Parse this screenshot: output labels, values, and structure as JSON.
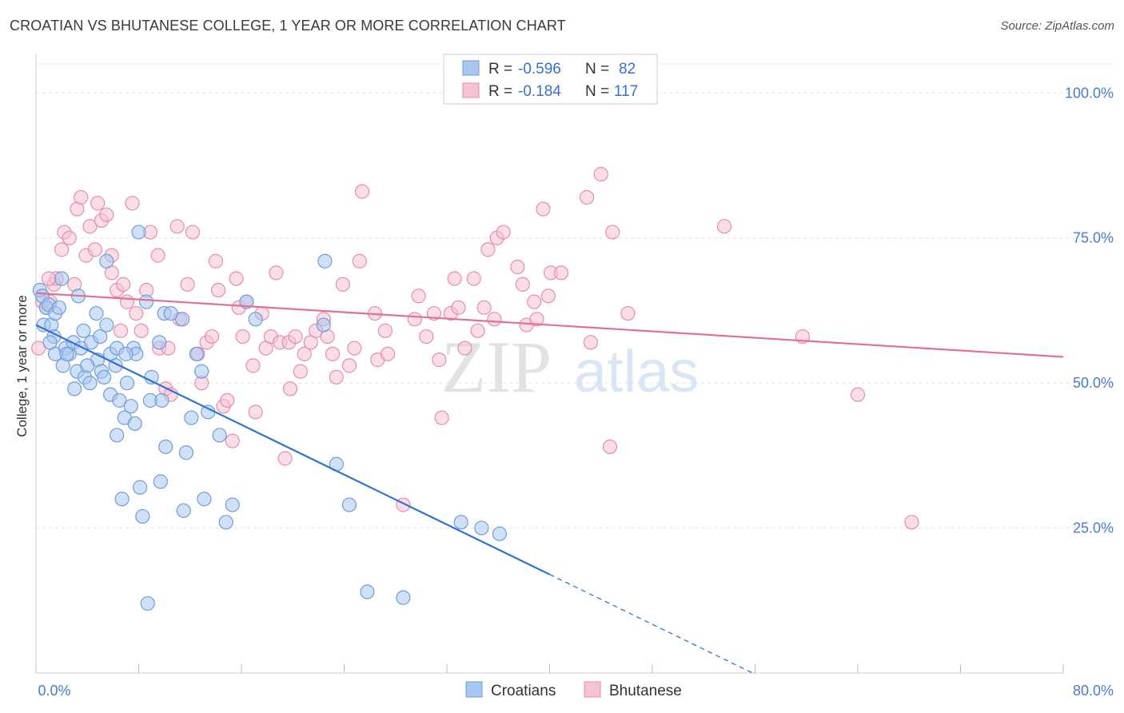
{
  "header": {
    "title": "CROATIAN VS BHUTANESE COLLEGE, 1 YEAR OR MORE CORRELATION CHART",
    "source": "Source: ZipAtlas.com"
  },
  "watermark": {
    "zip": "ZIP",
    "atlas": "atlas"
  },
  "colors": {
    "blue_fill": "#a9c6ee",
    "blue_stroke": "#6f9ddc",
    "blue_line": "#2f73d4",
    "pink_fill": "#f5c3d3",
    "pink_stroke": "#e98cab",
    "pink_line": "#e0709a",
    "axis_label": "#4a7bd0",
    "grid": "#e3e3e3"
  },
  "legend": {
    "rows": [
      {
        "series": "Croatians",
        "r_label": "R =",
        "r_value": "-0.596",
        "n_label": "N =",
        "n_value": "82"
      },
      {
        "series": "Bhutanese",
        "r_label": "R =",
        "r_value": "-0.184",
        "n_label": "N =",
        "n_value": "117"
      }
    ]
  },
  "bottom_legend": [
    "Croatians",
    "Bhutanese"
  ],
  "chart_data": {
    "type": "scatter",
    "title": "CROATIAN VS BHUTANESE COLLEGE, 1 YEAR OR MORE CORRELATION CHART",
    "xlabel": "",
    "ylabel": "College, 1 year or more",
    "xlim": [
      0,
      80
    ],
    "ylim": [
      0,
      105
    ],
    "x_tick_labels": [
      "0.0%",
      "80.0%"
    ],
    "y_ticks": [
      25,
      50,
      75,
      100
    ],
    "y_tick_labels": [
      "25.0%",
      "50.0%",
      "75.0%",
      "100.0%"
    ],
    "grid": true,
    "legend_position": "top-center",
    "series": [
      {
        "name": "Croatians",
        "R": -0.596,
        "N": 82,
        "trend": {
          "x0": 0,
          "y0": 60,
          "x1": 40,
          "y1": 17,
          "dash_to_x": 56
        },
        "points": [
          [
            0.3,
            66
          ],
          [
            0.5,
            65
          ],
          [
            0.8,
            63
          ],
          [
            1,
            63.5
          ],
          [
            0.6,
            60
          ],
          [
            1.2,
            60
          ],
          [
            1.4,
            58
          ],
          [
            1.5,
            62
          ],
          [
            1.8,
            63
          ],
          [
            1.5,
            55
          ],
          [
            2,
            68
          ],
          [
            2.3,
            56
          ],
          [
            2.6,
            55
          ],
          [
            2.1,
            53
          ],
          [
            2.9,
            57
          ],
          [
            3.3,
            65
          ],
          [
            3.5,
            56
          ],
          [
            3.2,
            52
          ],
          [
            3.7,
            59
          ],
          [
            3.8,
            51
          ],
          [
            4.3,
            57
          ],
          [
            4.2,
            50
          ],
          [
            4.7,
            62
          ],
          [
            4.8,
            54
          ],
          [
            5.1,
            52
          ],
          [
            5.3,
            51
          ],
          [
            5.5,
            60
          ],
          [
            5.5,
            71
          ],
          [
            5.8,
            55
          ],
          [
            5.8,
            48
          ],
          [
            6.2,
            53
          ],
          [
            6.3,
            56
          ],
          [
            6.5,
            47
          ],
          [
            6.3,
            41
          ],
          [
            7.1,
            50
          ],
          [
            6.9,
            44
          ],
          [
            7.4,
            46
          ],
          [
            7.6,
            56
          ],
          [
            7.7,
            43
          ],
          [
            7.8,
            55
          ],
          [
            8.1,
            32
          ],
          [
            8.0,
            76
          ],
          [
            8.3,
            27
          ],
          [
            8.6,
            64
          ],
          [
            8.9,
            47
          ],
          [
            9.0,
            51
          ],
          [
            9.6,
            57
          ],
          [
            9.7,
            33
          ],
          [
            9.8,
            47
          ],
          [
            10.0,
            62
          ],
          [
            10.1,
            39
          ],
          [
            10.5,
            62
          ],
          [
            11.4,
            61
          ],
          [
            11.5,
            28
          ],
          [
            11.7,
            38
          ],
          [
            12.1,
            44
          ],
          [
            12.5,
            55
          ],
          [
            12.9,
            52
          ],
          [
            13.1,
            30
          ],
          [
            13.4,
            45
          ],
          [
            14.3,
            41
          ],
          [
            14.8,
            26
          ],
          [
            15.3,
            29
          ],
          [
            16.4,
            64
          ],
          [
            17.1,
            61
          ],
          [
            22.4,
            60
          ],
          [
            22.5,
            71
          ],
          [
            23.4,
            36
          ],
          [
            24.4,
            29
          ],
          [
            25.8,
            14
          ],
          [
            28.6,
            13
          ],
          [
            33.1,
            26
          ],
          [
            34.7,
            25
          ],
          [
            36.1,
            24
          ],
          [
            8.7,
            12
          ],
          [
            6.7,
            30
          ],
          [
            2.4,
            55
          ],
          [
            1.1,
            57
          ],
          [
            4.0,
            53
          ],
          [
            3.0,
            49
          ],
          [
            5.0,
            58
          ],
          [
            7.0,
            55
          ]
        ]
      },
      {
        "name": "Bhutanese",
        "R": -0.184,
        "N": 117,
        "trend": {
          "x0": 0,
          "y0": 65.5,
          "x1": 80,
          "y1": 54.5
        },
        "points": [
          [
            0.2,
            56
          ],
          [
            0.5,
            64
          ],
          [
            0.8,
            63
          ],
          [
            1.1,
            64
          ],
          [
            1.4,
            67
          ],
          [
            1.6,
            68
          ],
          [
            2.0,
            73
          ],
          [
            2.2,
            76
          ],
          [
            2.6,
            75
          ],
          [
            3.2,
            80
          ],
          [
            3.5,
            82
          ],
          [
            3.9,
            72
          ],
          [
            4.2,
            77
          ],
          [
            4.6,
            73
          ],
          [
            4.8,
            81
          ],
          [
            5.1,
            78
          ],
          [
            5.5,
            79
          ],
          [
            5.9,
            69
          ],
          [
            6.3,
            66
          ],
          [
            6.6,
            59
          ],
          [
            6.8,
            67
          ],
          [
            7.1,
            64
          ],
          [
            7.5,
            81
          ],
          [
            7.8,
            62
          ],
          [
            8.2,
            59
          ],
          [
            8.6,
            66
          ],
          [
            8.9,
            76
          ],
          [
            9.5,
            72
          ],
          [
            9.6,
            56
          ],
          [
            10.1,
            49
          ],
          [
            10.3,
            56
          ],
          [
            10.5,
            48
          ],
          [
            11.0,
            77
          ],
          [
            11.2,
            61
          ],
          [
            11.8,
            67
          ],
          [
            12.2,
            76
          ],
          [
            12.6,
            55
          ],
          [
            12.9,
            50
          ],
          [
            13.3,
            57
          ],
          [
            13.7,
            58
          ],
          [
            14.0,
            71
          ],
          [
            14.2,
            66
          ],
          [
            14.6,
            46
          ],
          [
            14.9,
            47
          ],
          [
            15.3,
            40
          ],
          [
            15.6,
            68
          ],
          [
            15.8,
            63
          ],
          [
            16.1,
            58
          ],
          [
            16.4,
            64
          ],
          [
            16.9,
            53
          ],
          [
            17.1,
            45
          ],
          [
            17.6,
            62
          ],
          [
            17.9,
            56
          ],
          [
            18.3,
            58
          ],
          [
            18.7,
            69
          ],
          [
            19.0,
            57
          ],
          [
            19.4,
            37
          ],
          [
            19.7,
            57
          ],
          [
            19.8,
            49
          ],
          [
            20.2,
            58
          ],
          [
            20.6,
            52
          ],
          [
            20.9,
            55
          ],
          [
            21.4,
            57
          ],
          [
            21.8,
            59
          ],
          [
            22.4,
            61
          ],
          [
            22.7,
            58
          ],
          [
            23.1,
            55
          ],
          [
            23.4,
            51
          ],
          [
            23.9,
            67
          ],
          [
            24.4,
            53
          ],
          [
            24.8,
            56
          ],
          [
            25.2,
            71
          ],
          [
            25.4,
            83
          ],
          [
            26.4,
            62
          ],
          [
            26.6,
            54
          ],
          [
            27.2,
            59
          ],
          [
            27.4,
            55
          ],
          [
            28.6,
            29
          ],
          [
            29.5,
            61
          ],
          [
            29.8,
            65
          ],
          [
            30.4,
            58
          ],
          [
            31.0,
            62
          ],
          [
            31.4,
            54
          ],
          [
            31.6,
            44
          ],
          [
            32.3,
            62
          ],
          [
            32.6,
            68
          ],
          [
            32.9,
            63
          ],
          [
            33.4,
            56
          ],
          [
            34.1,
            68
          ],
          [
            34.4,
            59
          ],
          [
            34.9,
            63
          ],
          [
            35.2,
            73
          ],
          [
            35.7,
            61
          ],
          [
            35.9,
            75
          ],
          [
            36.4,
            76
          ],
          [
            37.5,
            70
          ],
          [
            37.9,
            67
          ],
          [
            38.2,
            60
          ],
          [
            38.8,
            64
          ],
          [
            39.0,
            61
          ],
          [
            39.5,
            80
          ],
          [
            39.9,
            65
          ],
          [
            40.1,
            69
          ],
          [
            40.9,
            69
          ],
          [
            42.9,
            82
          ],
          [
            43.2,
            57
          ],
          [
            44.0,
            86
          ],
          [
            44.7,
            39
          ],
          [
            44.9,
            76
          ],
          [
            46.1,
            62
          ],
          [
            53.6,
            77
          ],
          [
            59.7,
            58
          ],
          [
            64.0,
            48
          ],
          [
            68.2,
            26
          ],
          [
            5.9,
            72
          ],
          [
            3.0,
            67
          ],
          [
            1.0,
            68
          ]
        ]
      }
    ]
  }
}
